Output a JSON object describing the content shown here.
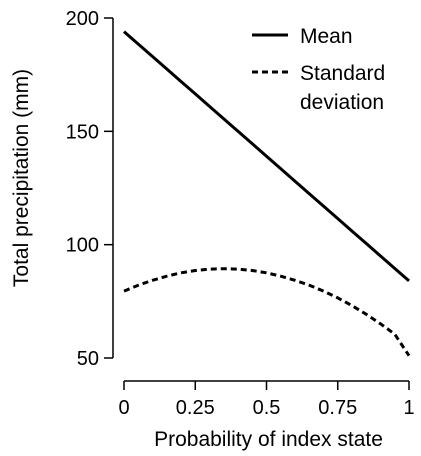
{
  "chart_data": {
    "type": "line",
    "title": "",
    "xlabel": "Probability of index state",
    "ylabel": "Total precipitation (mm)",
    "xlim": [
      0,
      1
    ],
    "ylim": [
      50,
      200
    ],
    "xticks": [
      0,
      0.25,
      0.5,
      0.75,
      1
    ],
    "xtick_labels": [
      "0",
      "0.25",
      "0.5",
      "0.75",
      "1"
    ],
    "yticks": [
      50,
      100,
      150,
      200
    ],
    "ytick_labels": [
      "50",
      "100",
      "150",
      "200"
    ],
    "grid": false,
    "legend_position": "top-right",
    "x": [
      0,
      0.05,
      0.1,
      0.15,
      0.2,
      0.25,
      0.3,
      0.35,
      0.4,
      0.45,
      0.5,
      0.55,
      0.6,
      0.65,
      0.7,
      0.75,
      0.8,
      0.85,
      0.9,
      0.95,
      1
    ],
    "series": [
      {
        "name": "Mean",
        "style": "solid",
        "color": "#000000",
        "values": [
          194,
          188.5,
          183,
          177.5,
          172,
          166.5,
          161,
          155.5,
          150,
          144.5,
          139,
          133.5,
          128,
          122.5,
          117,
          111.5,
          106,
          100.5,
          95,
          89.5,
          84
        ]
      },
      {
        "name": "Standard deviation",
        "name_lines": [
          "Standard",
          "deviation"
        ],
        "style": "dashed",
        "color": "#000000",
        "values": [
          79.5,
          82.1,
          84.3,
          86.1,
          87.6,
          88.6,
          89.2,
          89.4,
          89.2,
          88.6,
          87.6,
          86.1,
          84.3,
          82.1,
          79.5,
          76.5,
          73.1,
          69.3,
          65.1,
          60.5,
          51
        ]
      }
    ]
  }
}
